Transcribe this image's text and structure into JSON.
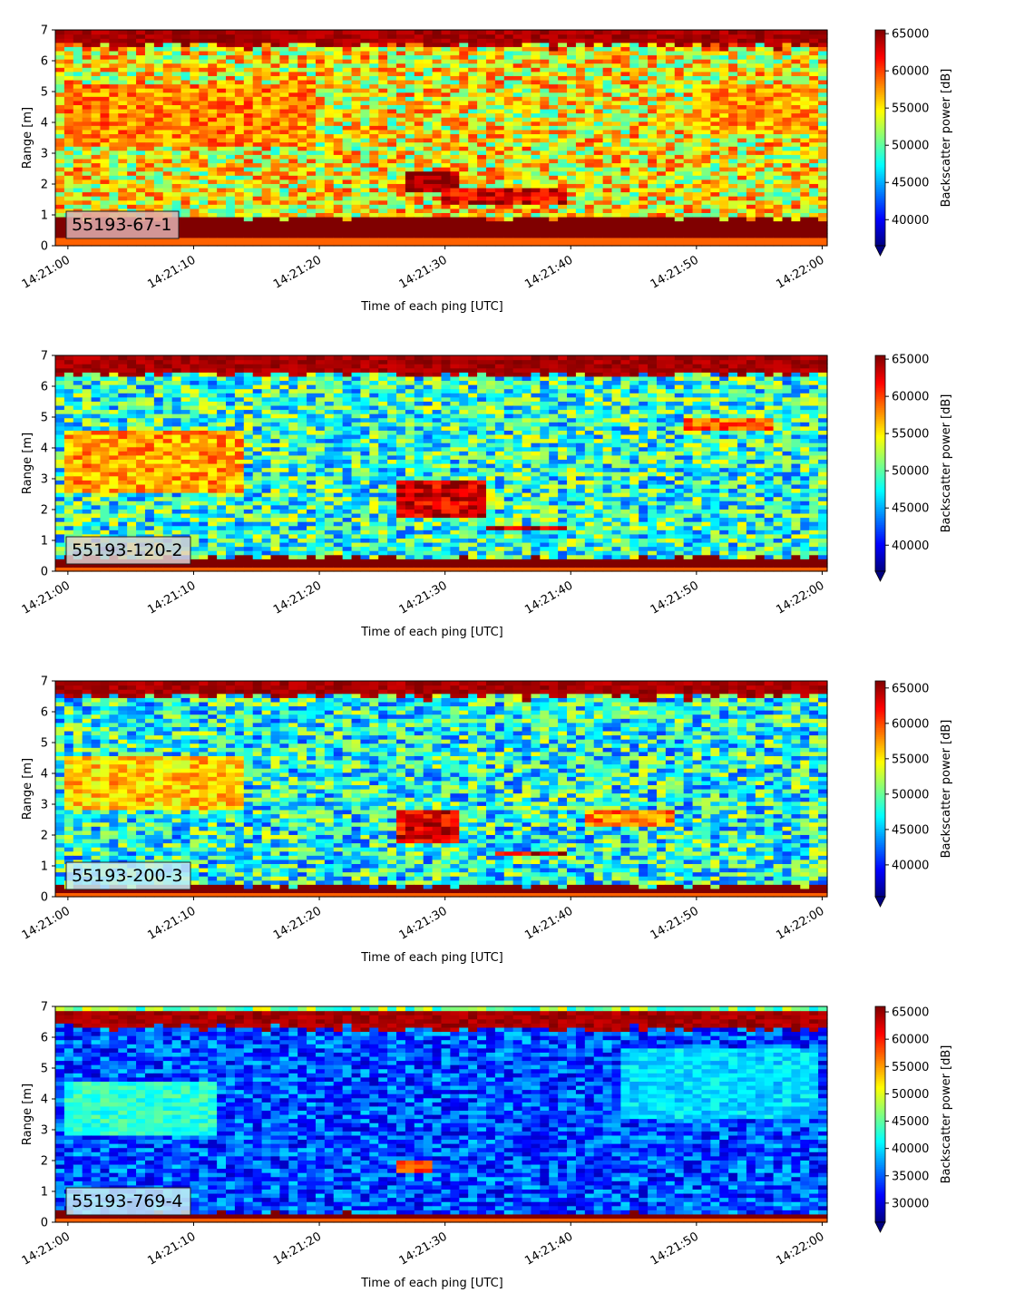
{
  "xticks": [
    "14:21:00",
    "14:21:10",
    "14:21:20",
    "14:21:30",
    "14:21:40",
    "14:21:50",
    "14:22:00"
  ],
  "yticks": [
    "0",
    "1",
    "2",
    "3",
    "4",
    "5",
    "6",
    "7"
  ],
  "xlabel": "Time of each ping [UTC]",
  "ylabel": "Range [m]",
  "cbar_label": "Backscatter power [dB]",
  "colormap": "jet",
  "chart_data": [
    {
      "type": "heatmap",
      "annotation": "55193-67-1",
      "annotation_bg": "#e0b0b0",
      "xlabel": "Time of each ping [UTC]",
      "ylabel": "Range [m]",
      "x_range": [
        "14:21:00",
        "14:22:00"
      ],
      "ylim": [
        0,
        7
      ],
      "colorbar": {
        "label": "Backscatter power [dB]",
        "min": 36500,
        "max": 65500,
        "ticks": [
          40000,
          45000,
          50000,
          55000,
          60000,
          65000
        ],
        "extend": "min"
      },
      "profile": {
        "bottom_sat_below_m": 0.9,
        "surface_band_m": [
          6.5,
          7.0
        ],
        "mid_level": 0.62,
        "noise": 0.22,
        "features": [
          {
            "t": [
              0,
              20
            ],
            "r": [
              3.2,
              5.2
            ],
            "level": 0.75
          },
          {
            "t": [
              27,
              31
            ],
            "r": [
              1.7,
              2.4
            ],
            "level": 1.0
          },
          {
            "t": [
              30,
              40
            ],
            "r": [
              1.4,
              1.9
            ],
            "level": 0.9
          },
          {
            "t": [
              50,
              60
            ],
            "r": [
              3.6,
              5.2
            ],
            "level": 0.72
          }
        ]
      }
    },
    {
      "type": "heatmap",
      "annotation": "55193-120-2",
      "annotation_bg": "#ddd0d0",
      "xlabel": "Time of each ping [UTC]",
      "ylabel": "Range [m]",
      "x_range": [
        "14:21:00",
        "14:22:00"
      ],
      "ylim": [
        0,
        7
      ],
      "colorbar": {
        "label": "Backscatter power [dB]",
        "min": 36500,
        "max": 65500,
        "ticks": [
          40000,
          45000,
          50000,
          55000,
          60000,
          65000
        ],
        "extend": "min"
      },
      "profile": {
        "bottom_sat_below_m": 0.45,
        "surface_band_m": [
          6.4,
          7.0
        ],
        "mid_level": 0.42,
        "noise": 0.22,
        "features": [
          {
            "t": [
              0,
              14
            ],
            "r": [
              2.6,
              4.6
            ],
            "level": 0.72
          },
          {
            "t": [
              26,
              33
            ],
            "r": [
              1.8,
              2.9
            ],
            "level": 0.92
          },
          {
            "t": [
              33,
              40
            ],
            "r": [
              1.3,
              1.5
            ],
            "level": 0.95
          },
          {
            "t": [
              49,
              56
            ],
            "r": [
              4.6,
              5.0
            ],
            "level": 0.78
          }
        ]
      }
    },
    {
      "type": "heatmap",
      "annotation": "55193-200-3",
      "annotation_bg": "#c8ecf4",
      "xlabel": "Time of each ping [UTC]",
      "ylabel": "Range [m]",
      "x_range": [
        "14:21:00",
        "14:22:00"
      ],
      "ylim": [
        0,
        7
      ],
      "colorbar": {
        "label": "Backscatter power [dB]",
        "min": 35500,
        "max": 66000,
        "ticks": [
          40000,
          45000,
          50000,
          55000,
          60000,
          65000
        ],
        "extend": "min"
      },
      "profile": {
        "bottom_sat_below_m": 0.35,
        "surface_band_m": [
          6.5,
          7.0
        ],
        "mid_level": 0.4,
        "noise": 0.22,
        "features": [
          {
            "t": [
              0,
              14
            ],
            "r": [
              2.8,
              4.6
            ],
            "level": 0.68
          },
          {
            "t": [
              26,
              31
            ],
            "r": [
              1.8,
              2.8
            ],
            "level": 0.9
          },
          {
            "t": [
              34,
              40
            ],
            "r": [
              1.3,
              1.5
            ],
            "level": 0.9
          },
          {
            "t": [
              41,
              48
            ],
            "r": [
              2.3,
              2.8
            ],
            "level": 0.75
          }
        ]
      }
    },
    {
      "type": "heatmap",
      "annotation": "55193-769-4",
      "annotation_bg": "#c8ecf4",
      "xlabel": "Time of each ping [UTC]",
      "ylabel": "Range [m]",
      "x_range": [
        "14:21:00",
        "14:22:00"
      ],
      "ylim": [
        0,
        7
      ],
      "colorbar": {
        "label": "Backscatter power [dB]",
        "min": 26500,
        "max": 66000,
        "ticks": [
          30000,
          35000,
          40000,
          45000,
          50000,
          55000,
          60000,
          65000
        ],
        "extend": "min"
      },
      "profile": {
        "bottom_sat_below_m": 0.3,
        "surface_band_m": [
          6.3,
          6.8
        ],
        "mid_level": 0.2,
        "noise": 0.14,
        "features": [
          {
            "t": [
              0,
              12
            ],
            "r": [
              2.8,
              4.6
            ],
            "level": 0.42
          },
          {
            "t": [
              26,
              29
            ],
            "r": [
              1.6,
              2.0
            ],
            "level": 0.8
          },
          {
            "t": [
              44,
              60
            ],
            "r": [
              3.3,
              5.6
            ],
            "level": 0.34
          }
        ]
      }
    }
  ]
}
